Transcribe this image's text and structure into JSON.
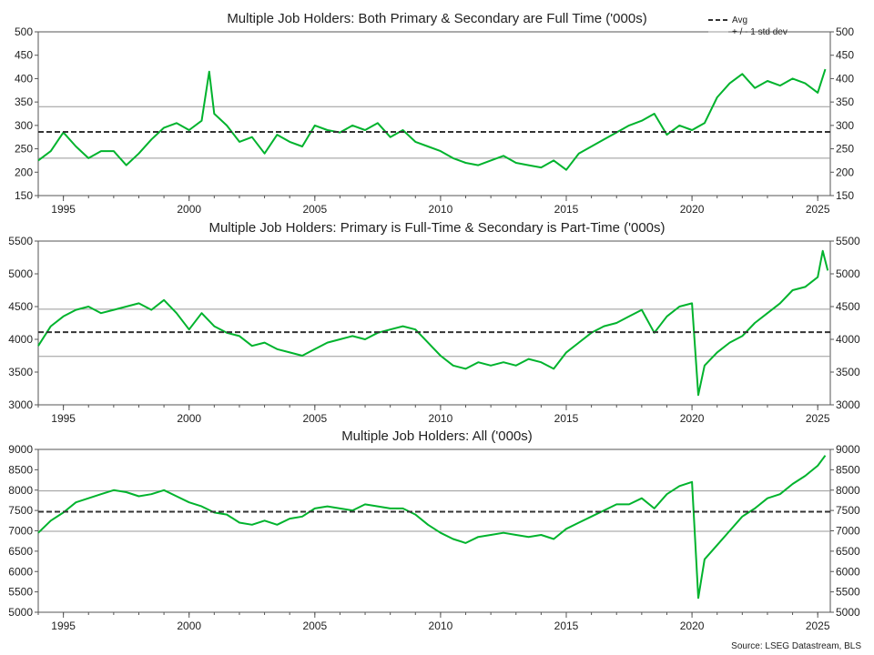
{
  "chart_data": [
    {
      "type": "line",
      "title": "Multiple Job Holders: Both Primary & Secondary are Full Time ('000s)",
      "xlabel": "",
      "ylabel": "",
      "xlim": [
        1994.0,
        2025.5
      ],
      "ylim": [
        150,
        500
      ],
      "y_ticks": [
        150,
        200,
        250,
        300,
        350,
        400,
        450,
        500
      ],
      "x_ticks": [
        "1995",
        "2000",
        "2005",
        "2010",
        "2015",
        "2020",
        "2025"
      ],
      "avg": 286,
      "upper_band": 340,
      "lower_band": 230,
      "series": [
        {
          "color": "#00b32d",
          "x": [
            1994.0,
            1994.5,
            1995.0,
            1995.5,
            1996.0,
            1996.5,
            1997.0,
            1997.5,
            1998.0,
            1998.5,
            1999.0,
            1999.5,
            2000.0,
            2000.5,
            2000.8,
            2001.0,
            2001.5,
            2002.0,
            2002.5,
            2003.0,
            2003.5,
            2004.0,
            2004.5,
            2005.0,
            2005.5,
            2006.0,
            2006.5,
            2007.0,
            2007.5,
            2008.0,
            2008.5,
            2009.0,
            2009.5,
            2010.0,
            2010.5,
            2011.0,
            2011.5,
            2012.0,
            2012.5,
            2013.0,
            2013.5,
            2014.0,
            2014.5,
            2015.0,
            2015.5,
            2016.0,
            2016.5,
            2017.0,
            2017.5,
            2018.0,
            2018.5,
            2019.0,
            2019.5,
            2020.0,
            2020.5,
            2021.0,
            2021.5,
            2022.0,
            2022.5,
            2023.0,
            2023.5,
            2024.0,
            2024.5,
            2025.0,
            2025.3
          ],
          "values": [
            225,
            245,
            285,
            255,
            230,
            245,
            245,
            215,
            240,
            270,
            295,
            305,
            290,
            310,
            415,
            325,
            300,
            265,
            275,
            240,
            280,
            265,
            255,
            300,
            290,
            285,
            300,
            290,
            305,
            275,
            290,
            265,
            255,
            245,
            230,
            220,
            215,
            225,
            235,
            220,
            215,
            210,
            225,
            205,
            240,
            255,
            270,
            285,
            300,
            310,
            325,
            280,
            300,
            290,
            305,
            360,
            390,
            410,
            380,
            395,
            385,
            400,
            390,
            370,
            420
          ]
        }
      ]
    },
    {
      "type": "line",
      "title": "Multiple Job Holders: Primary is Full-Time & Secondary is Part-Time ('000s)",
      "xlabel": "",
      "ylabel": "",
      "xlim": [
        1994.0,
        2025.5
      ],
      "ylim": [
        3000,
        5500
      ],
      "y_ticks": [
        3000,
        3500,
        4000,
        4500,
        5000,
        5500
      ],
      "x_ticks": [
        "1995",
        "2000",
        "2005",
        "2010",
        "2015",
        "2020",
        "2025"
      ],
      "avg": 4110,
      "upper_band": 4460,
      "lower_band": 3740,
      "series": [
        {
          "color": "#00b32d",
          "x": [
            1994.0,
            1994.5,
            1995.0,
            1995.5,
            1996.0,
            1996.5,
            1997.0,
            1997.5,
            1998.0,
            1998.5,
            1999.0,
            1999.5,
            2000.0,
            2000.5,
            2001.0,
            2001.5,
            2002.0,
            2002.5,
            2003.0,
            2003.5,
            2004.0,
            2004.5,
            2005.0,
            2005.5,
            2006.0,
            2006.5,
            2007.0,
            2007.5,
            2008.0,
            2008.5,
            2009.0,
            2009.5,
            2010.0,
            2010.5,
            2011.0,
            2011.5,
            2012.0,
            2012.5,
            2013.0,
            2013.5,
            2014.0,
            2014.5,
            2015.0,
            2015.5,
            2016.0,
            2016.5,
            2017.0,
            2017.5,
            2018.0,
            2018.5,
            2019.0,
            2019.5,
            2020.0,
            2020.25,
            2020.5,
            2021.0,
            2021.5,
            2022.0,
            2022.5,
            2023.0,
            2023.5,
            2024.0,
            2024.5,
            2025.0,
            2025.2,
            2025.4
          ],
          "values": [
            3900,
            4200,
            4350,
            4450,
            4500,
            4400,
            4450,
            4500,
            4550,
            4450,
            4600,
            4400,
            4150,
            4400,
            4200,
            4100,
            4050,
            3900,
            3950,
            3850,
            3800,
            3750,
            3850,
            3950,
            4000,
            4050,
            4000,
            4100,
            4150,
            4200,
            4150,
            3950,
            3750,
            3600,
            3550,
            3650,
            3600,
            3650,
            3600,
            3700,
            3650,
            3550,
            3800,
            3950,
            4100,
            4200,
            4250,
            4350,
            4450,
            4100,
            4350,
            4500,
            4550,
            3150,
            3600,
            3800,
            3950,
            4050,
            4250,
            4400,
            4550,
            4750,
            4800,
            4950,
            5350,
            5050
          ]
        }
      ]
    },
    {
      "type": "line",
      "title": "Multiple Job Holders: All ('000s)",
      "xlabel": "",
      "ylabel": "",
      "xlim": [
        1994.0,
        2025.5
      ],
      "ylim": [
        5000,
        9000
      ],
      "y_ticks": [
        5000,
        5500,
        6000,
        6500,
        7000,
        7500,
        8000,
        8500,
        9000
      ],
      "x_ticks": [
        "1995",
        "2000",
        "2005",
        "2010",
        "2015",
        "2020",
        "2025"
      ],
      "avg": 7470,
      "upper_band": 7980,
      "lower_band": 6990,
      "series": [
        {
          "color": "#00b32d",
          "x": [
            1994.0,
            1994.5,
            1995.0,
            1995.5,
            1996.0,
            1996.5,
            1997.0,
            1997.5,
            1998.0,
            1998.5,
            1999.0,
            1999.5,
            2000.0,
            2000.5,
            2001.0,
            2001.5,
            2002.0,
            2002.5,
            2003.0,
            2003.5,
            2004.0,
            2004.5,
            2005.0,
            2005.5,
            2006.0,
            2006.5,
            2007.0,
            2007.5,
            2008.0,
            2008.5,
            2009.0,
            2009.5,
            2010.0,
            2010.5,
            2011.0,
            2011.5,
            2012.0,
            2012.5,
            2013.0,
            2013.5,
            2014.0,
            2014.5,
            2015.0,
            2015.5,
            2016.0,
            2016.5,
            2017.0,
            2017.5,
            2018.0,
            2018.5,
            2019.0,
            2019.5,
            2020.0,
            2020.25,
            2020.5,
            2021.0,
            2021.5,
            2022.0,
            2022.5,
            2023.0,
            2023.5,
            2024.0,
            2024.5,
            2025.0,
            2025.3
          ],
          "values": [
            6950,
            7250,
            7450,
            7700,
            7800,
            7900,
            8000,
            7950,
            7850,
            7900,
            8000,
            7850,
            7700,
            7600,
            7450,
            7400,
            7200,
            7150,
            7250,
            7150,
            7300,
            7350,
            7550,
            7600,
            7550,
            7500,
            7650,
            7600,
            7550,
            7550,
            7400,
            7150,
            6950,
            6800,
            6700,
            6850,
            6900,
            6950,
            6900,
            6850,
            6900,
            6800,
            7050,
            7200,
            7350,
            7500,
            7650,
            7650,
            7800,
            7550,
            7900,
            8100,
            8200,
            5350,
            6300,
            6650,
            7000,
            7350,
            7550,
            7800,
            7900,
            8150,
            8350,
            8600,
            8850
          ]
        }
      ]
    }
  ],
  "legend": {
    "avg_label": "Avg",
    "band_label": "+ / - 1 std dev"
  },
  "source": "Source: LSEG Datastream, BLS"
}
